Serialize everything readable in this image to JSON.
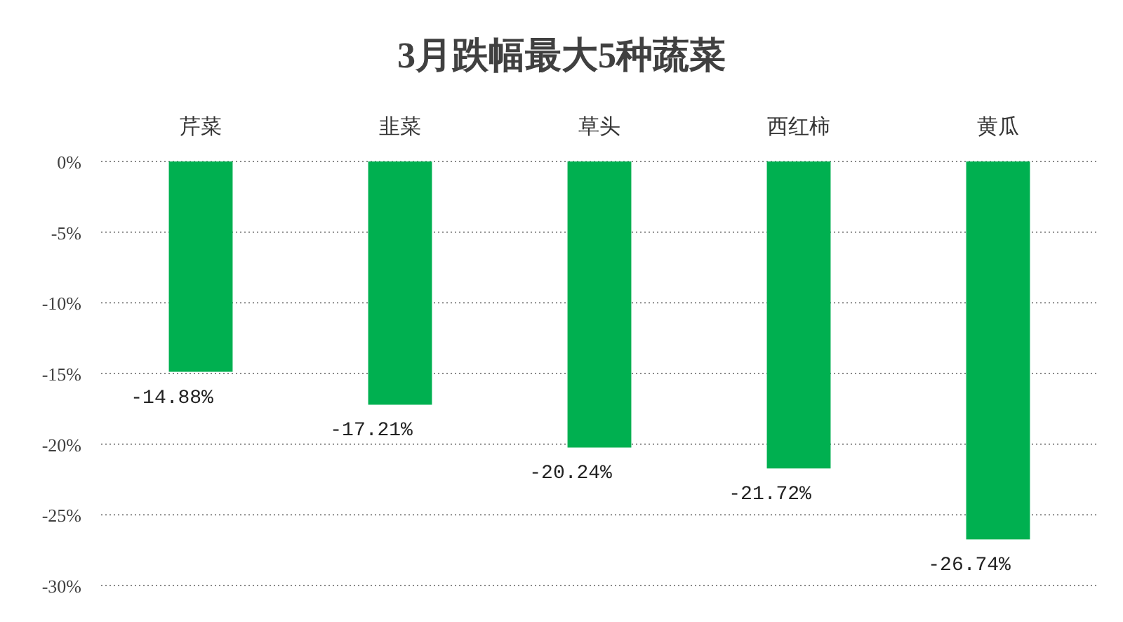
{
  "chart_data": {
    "type": "bar",
    "title": "3月跌幅最大5种蔬菜",
    "categories": [
      "芹菜",
      "韭菜",
      "草头",
      "西红柿",
      "黄瓜"
    ],
    "values": [
      -14.88,
      -17.21,
      -20.24,
      -21.72,
      -26.74
    ],
    "value_labels": [
      "-14.88%",
      "-17.21%",
      "-20.24%",
      "-21.72%",
      "-26.74%"
    ],
    "color": "#00b050",
    "ylim": [
      -30,
      0
    ],
    "yticks": [
      {
        "value": 0,
        "label": "0%"
      },
      {
        "value": -5,
        "label": "-5%"
      },
      {
        "value": -10,
        "label": "-10%"
      },
      {
        "value": -15,
        "label": "-15%"
      },
      {
        "value": -20,
        "label": "-20%"
      },
      {
        "value": -25,
        "label": "-25%"
      },
      {
        "value": -30,
        "label": "-30%"
      }
    ],
    "grid": "y"
  }
}
